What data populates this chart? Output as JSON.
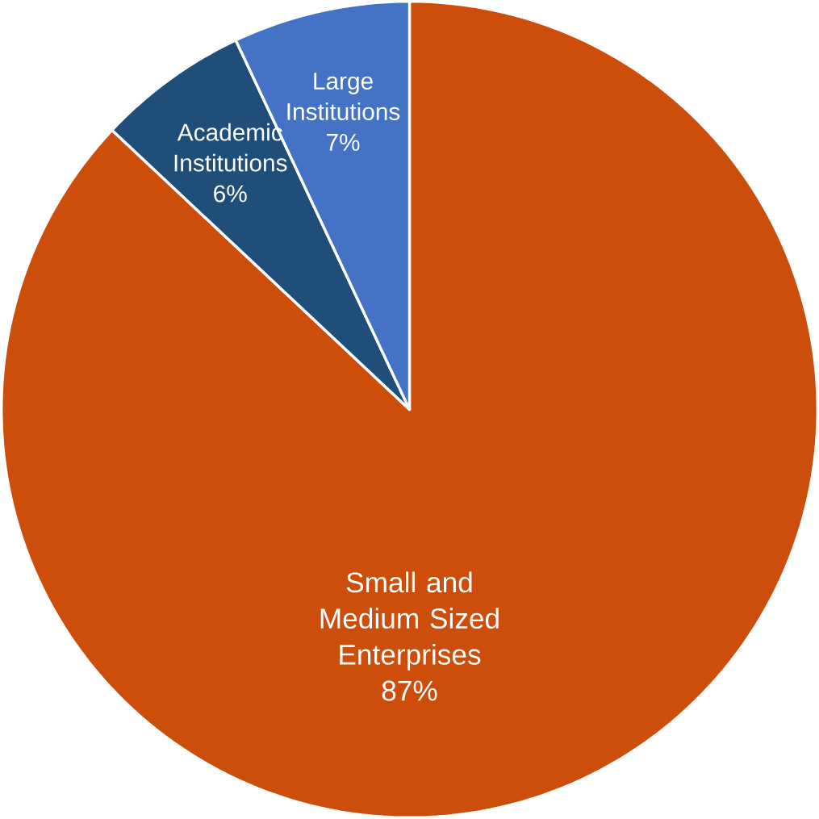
{
  "chart_data": {
    "type": "pie",
    "categories": [
      "Small and Medium Sized Enterprises",
      "Academic Institutions",
      "Large Institutions"
    ],
    "values": [
      87,
      6,
      7
    ],
    "colors": [
      "#cc4e0a",
      "#1f4e79",
      "#4472c4"
    ],
    "value_labels": [
      "87%",
      "6%",
      "7%"
    ]
  }
}
